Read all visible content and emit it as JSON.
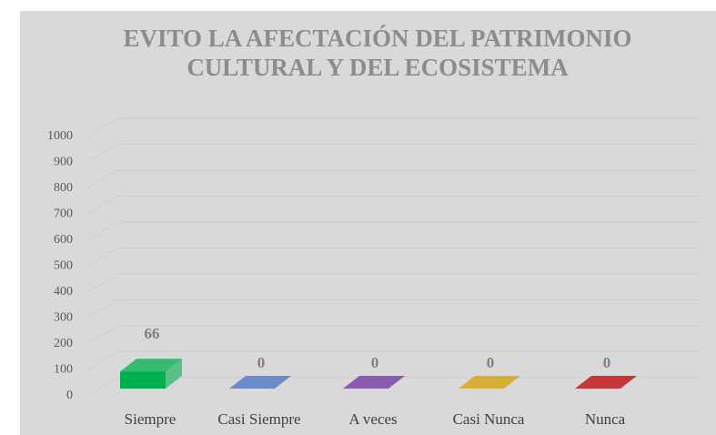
{
  "chart_data": {
    "type": "bar3d",
    "title_lines": [
      "EVITO LA AFECTACIÓN DEL PATRIMONIO",
      "CULTURAL Y DEL ECOSISTEMA"
    ],
    "categories": [
      "Siempre",
      "Casi Siempre",
      "A veces",
      "Casi Nunca",
      "Nunca"
    ],
    "values": [
      66,
      0,
      0,
      0,
      0
    ],
    "colors": [
      "#00b050",
      "#4472c4",
      "#7030a0",
      "#d4a000",
      "#c00000"
    ],
    "ylim": [
      0,
      1000
    ],
    "yticks": [
      0,
      100,
      200,
      300,
      400,
      500,
      600,
      700,
      800,
      900,
      1000
    ],
    "grid": true
  }
}
